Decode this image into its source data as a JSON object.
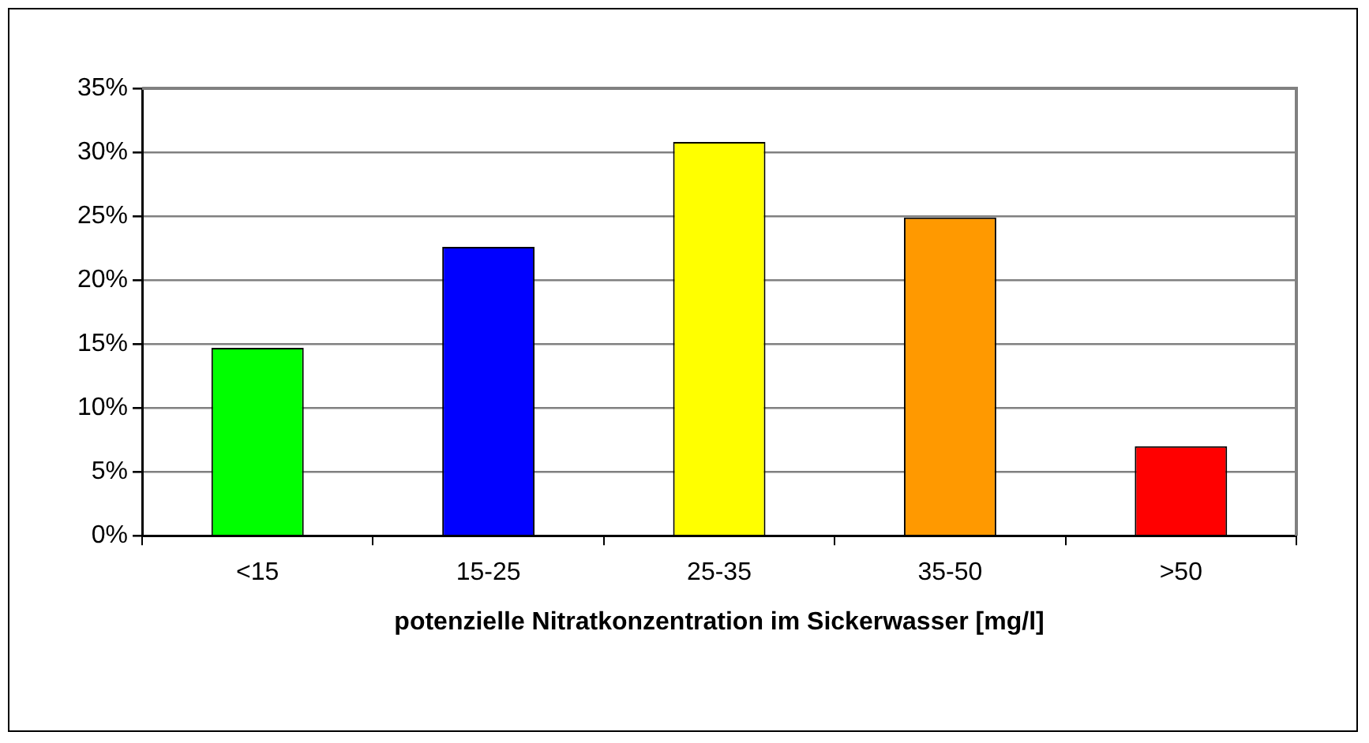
{
  "chart_data": {
    "type": "bar",
    "xlabel": "potenzielle Nitratkonzentration im Sickerwasser [mg/l]",
    "categories": [
      "<15",
      "15-25",
      "25-35",
      "35-50",
      ">50"
    ],
    "values": [
      14.7,
      22.6,
      30.8,
      24.9,
      7.0
    ],
    "colors": [
      "#00ff00",
      "#0000ff",
      "#ffff00",
      "#ff9900",
      "#ff0000"
    ],
    "ylim": [
      0,
      35
    ],
    "yticks": [
      {
        "value": 0,
        "label": "0%"
      },
      {
        "value": 5,
        "label": "5%"
      },
      {
        "value": 10,
        "label": "10%"
      },
      {
        "value": 15,
        "label": "15%"
      },
      {
        "value": 20,
        "label": "20%"
      },
      {
        "value": 25,
        "label": "25%"
      },
      {
        "value": 30,
        "label": "30%"
      },
      {
        "value": 35,
        "label": "35%"
      }
    ],
    "grid": "y",
    "legend": false
  }
}
